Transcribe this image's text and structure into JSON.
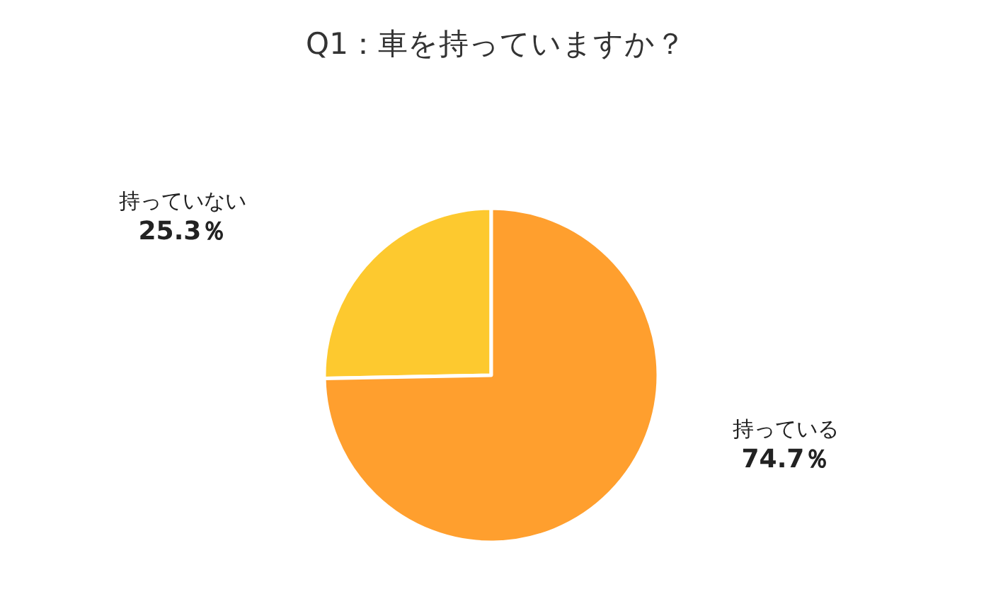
{
  "chart_data": {
    "type": "pie",
    "title": "Q1：車を持っていますか？",
    "categories": [
      "持っていない",
      "持っている"
    ],
    "values": [
      25.3,
      74.7
    ],
    "value_labels": [
      "25.3％",
      "74.7％"
    ],
    "colors": [
      "#fdc92f",
      "#ff9f2e"
    ],
    "legend": false
  }
}
